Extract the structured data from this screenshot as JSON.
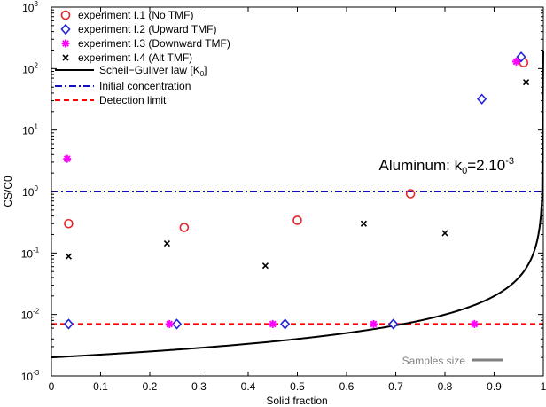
{
  "chart_data": {
    "type": "scatter",
    "title": "",
    "xlabel": "Solid fraction",
    "ylabel": "CS/C0",
    "xlim": [
      0,
      1
    ],
    "ylim_log10": [
      -3,
      3
    ],
    "yscale": "log",
    "x_ticks": [
      "0",
      "0.1",
      "0.2",
      "0.3",
      "0.4",
      "0.5",
      "0.6",
      "0.7",
      "0.8",
      "0.9",
      "1"
    ],
    "y_ticks": [
      {
        "base": "10",
        "exp": "-3",
        "v": 0.001
      },
      {
        "base": "10",
        "exp": "-2",
        "v": 0.01
      },
      {
        "base": "10",
        "exp": "-1",
        "v": 0.1
      },
      {
        "base": "10",
        "exp": "0",
        "v": 1
      },
      {
        "base": "10",
        "exp": "1",
        "v": 10
      },
      {
        "base": "10",
        "exp": "2",
        "v": 100
      },
      {
        "base": "10",
        "exp": "3",
        "v": 1000
      }
    ],
    "grid": false,
    "legend_position": "top-left",
    "series": [
      {
        "name": "experiment I.1 (No TMF)",
        "marker": "circle",
        "color": "#e8262a",
        "points": [
          [
            0.035,
            0.3
          ],
          [
            0.27,
            0.26
          ],
          [
            0.5,
            0.34
          ],
          [
            0.73,
            0.92
          ],
          [
            0.96,
            125
          ]
        ]
      },
      {
        "name": "experiment I.2 (Upward TMF)",
        "marker": "diamond",
        "color": "#2424d8",
        "points": [
          [
            0.035,
            0.007
          ],
          [
            0.255,
            0.007
          ],
          [
            0.475,
            0.007
          ],
          [
            0.695,
            0.007
          ],
          [
            0.875,
            32
          ],
          [
            0.955,
            155
          ]
        ]
      },
      {
        "name": "experiment I.3 (Downward TMF)",
        "marker": "star",
        "color": "#ff00ff",
        "points": [
          [
            0.032,
            3.4
          ],
          [
            0.24,
            0.007
          ],
          [
            0.45,
            0.007
          ],
          [
            0.655,
            0.007
          ],
          [
            0.86,
            0.007
          ],
          [
            0.945,
            130
          ]
        ]
      },
      {
        "name": "experiment I.4 (Alt TMF)",
        "marker": "x",
        "color": "#000000",
        "points": [
          [
            0.035,
            0.088
          ],
          [
            0.235,
            0.143
          ],
          [
            0.435,
            0.062
          ],
          [
            0.635,
            0.3
          ],
          [
            0.8,
            0.21
          ],
          [
            0.965,
            60
          ]
        ]
      }
    ],
    "lines": [
      {
        "name": "Scheil−Guliver law [K",
        "name_sub": "0",
        "name_end": "]",
        "style": "solid",
        "color": "#000000",
        "k0": 0.002
      },
      {
        "name": "Initial concentration",
        "style": "dashdot",
        "color": "#1010c0",
        "y": 1
      },
      {
        "name": "Detection limit",
        "style": "dashed",
        "color": "#ff0000",
        "y": 0.007
      }
    ],
    "annotation": {
      "prefix": "Aluminum: k",
      "sub": "0",
      "mid": "=2.10",
      "sup": "-3",
      "x": 0.98,
      "y": 2.2
    },
    "samples_size_label": "Samples size"
  }
}
